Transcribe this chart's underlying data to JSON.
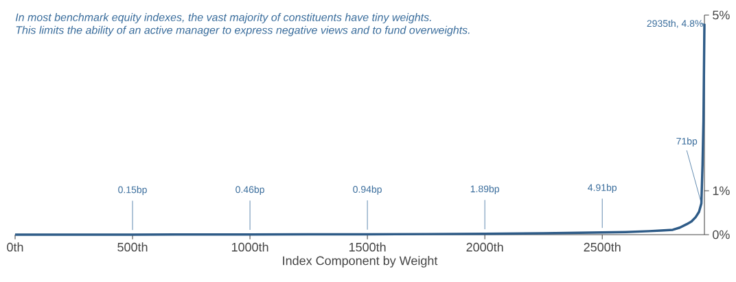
{
  "chart_data": {
    "type": "line",
    "title": "In most benchmark equity indexes, the vast majority of constituents have tiny weights.",
    "subtitle": "This limits the ability of an active manager to express negative views and to fund overweights.",
    "xlabel": "Index Component by Weight",
    "x": [
      0,
      250,
      500,
      750,
      1000,
      1250,
      1500,
      1750,
      2000,
      2250,
      2500,
      2600,
      2700,
      2750,
      2800,
      2830,
      2860,
      2880,
      2898,
      2912,
      2922,
      2927,
      2931,
      2935
    ],
    "values": [
      0,
      0.0008,
      0.0015,
      0.003,
      0.0046,
      0.007,
      0.0094,
      0.0135,
      0.0189,
      0.03,
      0.0491,
      0.06,
      0.08,
      0.095,
      0.11,
      0.16,
      0.24,
      0.3,
      0.4,
      0.52,
      0.71,
      1.6,
      2.6,
      4.8
    ],
    "color": "#2e5b87",
    "xlim": [
      0,
      2935
    ],
    "ylim": [
      0,
      5
    ],
    "xticks": [
      {
        "value": 0,
        "label": "0th"
      },
      {
        "value": 500,
        "label": "500th"
      },
      {
        "value": 1000,
        "label": "1000th"
      },
      {
        "value": 1500,
        "label": "1500th"
      },
      {
        "value": 2000,
        "label": "2000th"
      },
      {
        "value": 2500,
        "label": "2500th"
      }
    ],
    "yticks": [
      {
        "value": 0,
        "label": "0%"
      },
      {
        "value": 1,
        "label": "1%"
      },
      {
        "value": 5,
        "label": "5%"
      }
    ],
    "annotations": [
      {
        "text": "0.15bp",
        "x": 500,
        "y": 0.0015
      },
      {
        "text": "0.46bp",
        "x": 1000,
        "y": 0.0046
      },
      {
        "text": "0.94bp",
        "x": 1500,
        "y": 0.0094
      },
      {
        "text": "1.89bp",
        "x": 2000,
        "y": 0.0189
      },
      {
        "text": "4.91bp",
        "x": 2500,
        "y": 0.0491
      },
      {
        "text": "71bp",
        "x": 2922,
        "y": 0.71
      },
      {
        "text": "2935th, 4.8%",
        "x": 2935,
        "y": 4.8
      }
    ]
  }
}
